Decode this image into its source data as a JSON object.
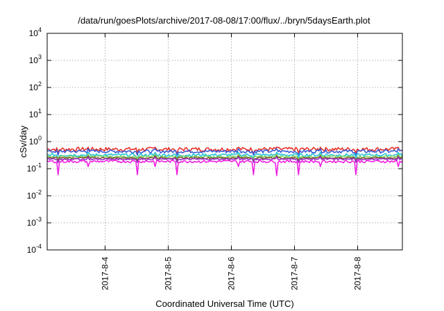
{
  "chart_data": {
    "type": "line",
    "title": "/data/run/goesPlots/archive/2017-08-08/17:00/flux/../bryn/5daysEarth.plot",
    "xlabel": "Coordinated Universal Time (UTC)",
    "ylabel": "cSv/day",
    "yscale": "log",
    "ylim": [
      0.0001,
      10000
    ],
    "xlim": [
      "2017-08-03 02:00",
      "2017-08-08 17:00"
    ],
    "grid": true,
    "legend": "none",
    "y_ticks": [
      {
        "base": "10",
        "exp": "-4"
      },
      {
        "base": "10",
        "exp": "-3"
      },
      {
        "base": "10",
        "exp": "-2"
      },
      {
        "base": "10",
        "exp": "-1"
      },
      {
        "base": "10",
        "exp": "0"
      },
      {
        "base": "10",
        "exp": "1"
      },
      {
        "base": "10",
        "exp": "2"
      },
      {
        "base": "10",
        "exp": "3"
      },
      {
        "base": "10",
        "exp": "4"
      }
    ],
    "x_ticks": [
      "2017-8-4",
      "2017-8-5",
      "2017-8-6",
      "2017-8-7",
      "2017-8-8"
    ],
    "series": [
      {
        "color": "#e8312a",
        "base": 0.5,
        "amp": 0.18,
        "dips": [
          0.38,
          0.62
        ]
      },
      {
        "color": "#3b5bd6",
        "base": 0.42,
        "amp": 0.12,
        "dips": [
          0.32,
          0.55
        ]
      },
      {
        "color": "#25c4d8",
        "base": 0.31,
        "amp": 0.08,
        "dips": [
          0.25,
          0.4
        ]
      },
      {
        "color": "#7fd36b",
        "base": 0.27,
        "amp": 0.05,
        "dips": [
          0.22,
          0.34
        ]
      },
      {
        "color": "#7a5c28",
        "base": 0.245,
        "amp": 0.035,
        "dips": [
          0.2,
          0.3
        ]
      },
      {
        "color": "#9b2fc7",
        "base": 0.22,
        "amp": 0.03,
        "dips": [
          0.17,
          0.27
        ]
      },
      {
        "color": "#f01ee0",
        "base": 0.18,
        "amp": 0.04,
        "dips": [
          0.06,
          0.12
        ]
      }
    ]
  }
}
